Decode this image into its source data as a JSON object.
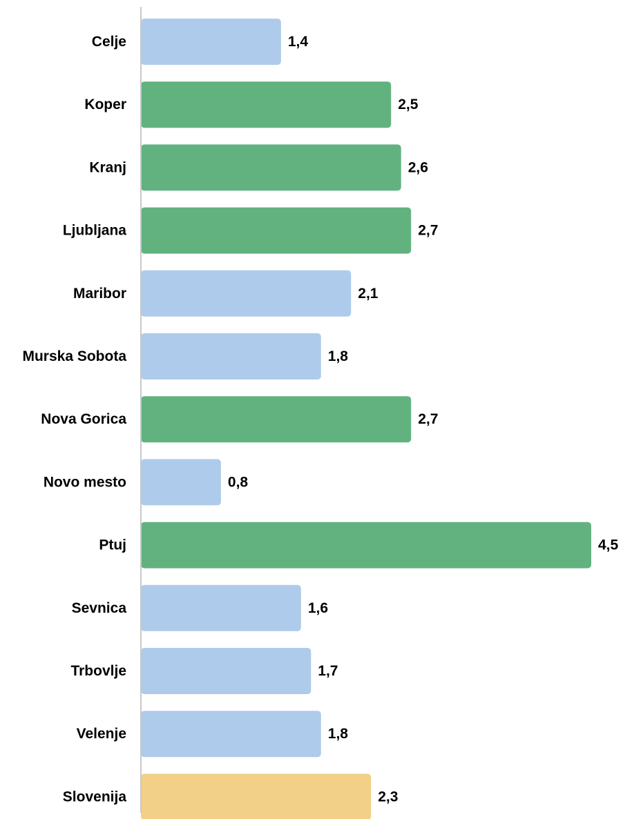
{
  "chart_data": {
    "type": "bar",
    "orientation": "horizontal",
    "categories": [
      "Celje",
      "Koper",
      "Kranj",
      "Ljubljana",
      "Maribor",
      "Murska Sobota",
      "Nova Gorica",
      "Novo mesto",
      "Ptuj",
      "Sevnica",
      "Trbovlje",
      "Velenje",
      "Slovenija"
    ],
    "values": [
      1.4,
      2.5,
      2.6,
      2.7,
      2.1,
      1.8,
      2.7,
      0.8,
      4.5,
      1.6,
      1.7,
      1.8,
      2.3
    ],
    "value_labels": [
      "1,4",
      "2,5",
      "2,6",
      "2,7",
      "2,1",
      "1,8",
      "2,7",
      "0,8",
      "4,5",
      "1,6",
      "1,7",
      "1,8",
      "2,3"
    ],
    "bar_color_groups": [
      "blue",
      "green",
      "green",
      "green",
      "blue",
      "blue",
      "green",
      "blue",
      "green",
      "blue",
      "blue",
      "blue",
      "yellow"
    ],
    "colors": {
      "blue": "#aecbeb",
      "green": "#62b280",
      "yellow": "#f2d088",
      "axis": "#c8c8c8"
    },
    "xlim": [
      0,
      4.5
    ],
    "grid": false,
    "legend": false
  }
}
